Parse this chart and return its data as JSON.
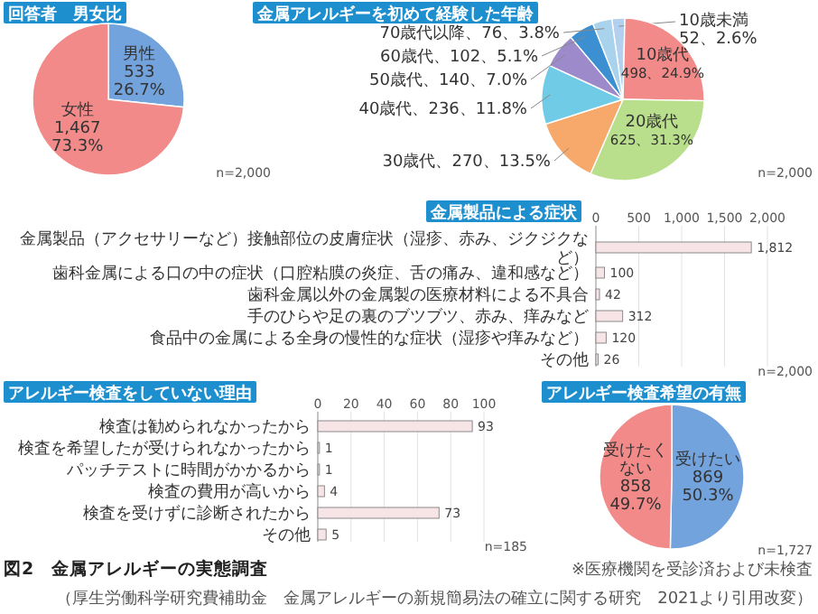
{
  "chart_data": [
    {
      "type": "pie",
      "title": "回答者　男女比",
      "categories": [
        "男性",
        "女性"
      ],
      "values": [
        533,
        1467
      ],
      "colors": [
        "#73a3dc",
        "#f28a8a"
      ],
      "value_labels": [
        "533 26.7%",
        "1,467 73.3%"
      ],
      "annotations": [
        "n=2,000"
      ]
    },
    {
      "type": "pie",
      "title": "金属アレルギーを初めて経験した年齢",
      "categories": [
        "10歳未満",
        "10歳代",
        "20歳代",
        "30歳代",
        "40歳代",
        "50歳代",
        "60歳代",
        "70歳代以降"
      ],
      "values": [
        52,
        498,
        625,
        270,
        236,
        140,
        102,
        76
      ],
      "colors": [
        "#b3d1ef",
        "#f28a8a",
        "#b9df8c",
        "#f7a96c",
        "#6fcbe6",
        "#9c8acb",
        "#3c8fd0",
        "#a9d3ec"
      ],
      "value_labels": [
        "52、2.6%",
        "498、24.9%",
        "625、31.3%",
        "270、13.5%",
        "236、11.8%",
        "140、7.0%",
        "102、5.1%",
        "76、3.8%"
      ],
      "annotations": [
        "n=2,000"
      ]
    },
    {
      "type": "bar",
      "orientation": "horizontal",
      "title": "金属製品による症状",
      "categories": [
        "金属製品（アクセサリーなど）接触部位の皮膚症状（湿疹、赤み、ジクジクなど）",
        "歯科金属による口の中の症状（口腔粘膜の炎症、舌の痛み、違和感など）",
        "歯科金属以外の金属製の医療材料による不具合",
        "手のひらや足の裏のブツブツ、赤み、痒みなど",
        "食品中の金属による全身の慢性的な症状（湿疹や痒みなど）",
        "その他"
      ],
      "values": [
        1812,
        100,
        42,
        312,
        120,
        26
      ],
      "value_labels": [
        "1,812",
        "100",
        "42",
        "312",
        "120",
        "26"
      ],
      "color": "#f6e4e6",
      "xlim": [
        0,
        2000
      ],
      "xticks": [
        0,
        500,
        {
          "value": 1000,
          "label": "1,000"
        },
        {
          "value": 1500,
          "label": "1,500"
        },
        {
          "value": 2000,
          "label": "2,000"
        }
      ],
      "grid": "x",
      "annotations": [
        "n=2,000"
      ]
    },
    {
      "type": "bar",
      "orientation": "horizontal",
      "title": "アレルギー検査をしていない理由",
      "categories": [
        "検査は勧められなかったから",
        "検査を希望したが受けられなかったから",
        "パッチテストに時間がかかるから",
        "検査の費用が高いから",
        "検査を受けずに診断されたから",
        "その他"
      ],
      "values": [
        93,
        1,
        1,
        4,
        73,
        5
      ],
      "color": "#f6e4e6",
      "xlim": [
        0,
        100
      ],
      "xticks": [
        0,
        20,
        40,
        60,
        80,
        100
      ],
      "grid": "x",
      "data_labels": true,
      "annotations": [
        "n=185"
      ]
    },
    {
      "type": "pie",
      "title": "アレルギー検査希望の有無",
      "categories": [
        "受けたい",
        "受けたくない"
      ],
      "values": [
        869,
        858
      ],
      "colors": [
        "#73a3dc",
        "#f28a8a"
      ],
      "value_labels": [
        "869 50.3%",
        "858 49.7%"
      ],
      "annotations": [
        "n=1,727",
        "※医療機関を受診済および未検査",
        "図2　金属アレルギーの実態調査",
        "（厚生労働科学研究費補助金　金属アレルギーの新規簡易法の確立に関する研究　2021より引用改変）"
      ]
    }
  ]
}
